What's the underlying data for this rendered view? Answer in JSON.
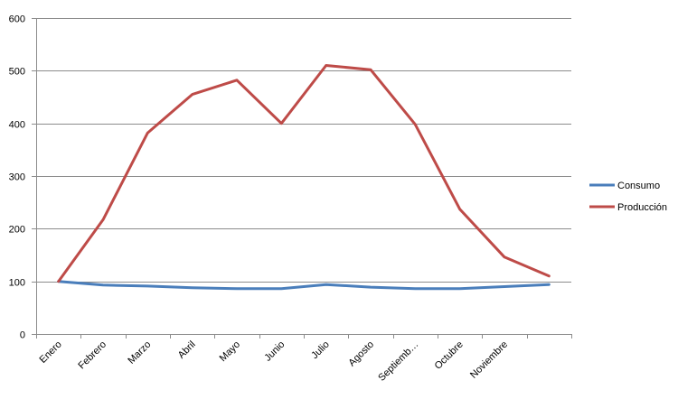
{
  "chart_data": {
    "type": "line",
    "categories": [
      "Enero",
      "Febrero",
      "Marzo",
      "Abril",
      "Mayo",
      "Junio",
      "Julio",
      "Agosto",
      "Septiemb…",
      "Octubre",
      "Noviembre",
      ""
    ],
    "series": [
      {
        "name": "Consumo",
        "color": "#4a7ebb",
        "values": [
          100,
          93,
          91,
          88,
          86,
          86,
          94,
          89,
          86,
          86,
          90,
          94
        ]
      },
      {
        "name": "Producción",
        "color": "#be4b48",
        "values": [
          100,
          217,
          382,
          455,
          482,
          400,
          510,
          502,
          398,
          237,
          146,
          110
        ]
      }
    ],
    "yticks": [
      0,
      100,
      200,
      300,
      400,
      500,
      600
    ],
    "ylim": [
      0,
      600
    ],
    "grid": true,
    "legend_position": "right",
    "title": "",
    "xlabel": "",
    "ylabel": ""
  }
}
